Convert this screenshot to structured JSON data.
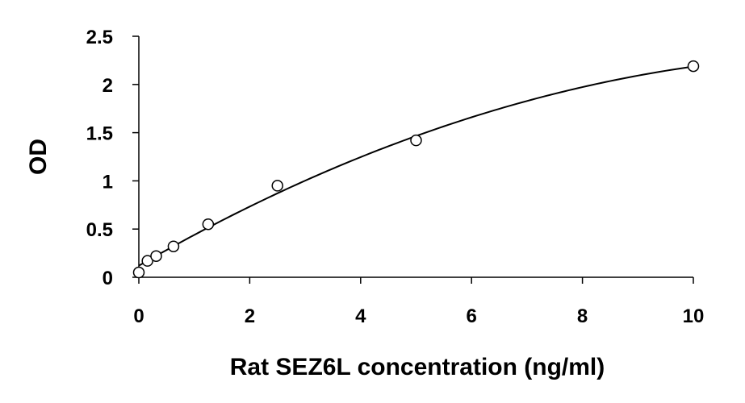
{
  "chart_data": {
    "type": "scatter",
    "title": "",
    "xlabel": "Rat SEZ6L concentration (ng/ml)",
    "ylabel": "OD",
    "xlim": [
      0,
      10
    ],
    "ylim": [
      0,
      2.5
    ],
    "xticks": [
      0,
      2,
      4,
      6,
      8,
      10
    ],
    "yticks": [
      0,
      0.5,
      1,
      1.5,
      2,
      2.5
    ],
    "xtick_labels": [
      "0",
      "2",
      "4",
      "6",
      "8",
      "10"
    ],
    "ytick_labels": [
      "0",
      "0.5",
      "1",
      "1.5",
      "2",
      "2.5"
    ],
    "grid": false,
    "legend": "none",
    "points": [
      {
        "x": 0,
        "y": 0.05
      },
      {
        "x": 0.156,
        "y": 0.17
      },
      {
        "x": 0.313,
        "y": 0.22
      },
      {
        "x": 0.625,
        "y": 0.32
      },
      {
        "x": 1.25,
        "y": 0.55
      },
      {
        "x": 2.5,
        "y": 0.95
      },
      {
        "x": 5,
        "y": 1.42
      },
      {
        "x": 10,
        "y": 2.19
      }
    ],
    "fit_curve": {
      "type": "polynomial-2",
      "coefficients": [
        0.12,
        0.3316,
        -0.0125
      ],
      "x_range": [
        0,
        10
      ]
    },
    "colors": {
      "axis": "#000000",
      "marker_fill": "#ffffff",
      "marker_stroke": "#000000",
      "curve": "#000000"
    }
  }
}
